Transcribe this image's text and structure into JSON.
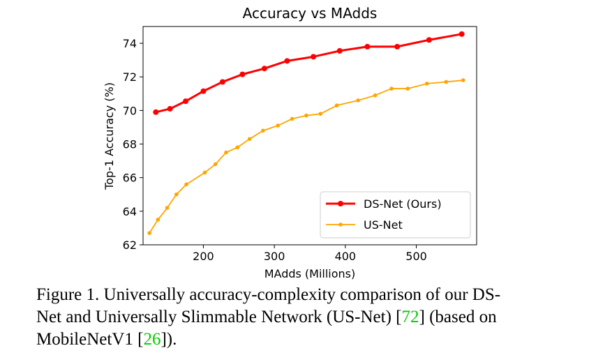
{
  "chart_data": {
    "type": "line",
    "title": "Accuracy vs MAdds",
    "xlabel": "MAdds (Millions)",
    "ylabel": "Top-1 Accuracy (%)",
    "xlim": [
      115,
      585
    ],
    "ylim": [
      62,
      75
    ],
    "xticks": [
      200,
      300,
      400,
      500
    ],
    "yticks": [
      62,
      64,
      66,
      68,
      70,
      72,
      74
    ],
    "grid": false,
    "legend_position": "bottom-right",
    "series": [
      {
        "name": "DS-Net (Ours)",
        "color": "#ff0000",
        "x": [
          133,
          153,
          175,
          200,
          227,
          255,
          286,
          318,
          355,
          392,
          431,
          473,
          518,
          564
        ],
        "y": [
          69.9,
          70.1,
          70.55,
          71.15,
          71.7,
          72.15,
          72.5,
          72.95,
          73.2,
          73.55,
          73.8,
          73.8,
          74.2,
          74.55
        ]
      },
      {
        "name": "US-Net",
        "color": "#ffa500",
        "x": [
          124,
          136,
          149,
          162,
          176,
          202,
          217,
          232,
          248,
          265,
          284,
          305,
          325,
          345,
          365,
          388,
          418,
          442,
          465,
          488,
          515,
          542,
          566
        ],
        "y": [
          62.7,
          63.5,
          64.2,
          65.0,
          65.6,
          66.3,
          66.8,
          67.5,
          67.8,
          68.3,
          68.8,
          69.1,
          69.5,
          69.7,
          69.8,
          70.3,
          70.6,
          70.9,
          71.3,
          71.3,
          71.6,
          71.7,
          71.8
        ]
      }
    ]
  },
  "caption": {
    "line1": "Figure 1. Universally accuracy-complexity comparison of our DS-",
    "line2_pre": "Net and Universally Slimmable Network (US-Net) [",
    "line2_ref": "72",
    "line2_post": "] (based on",
    "line3_pre": "MobileNetV1 [",
    "line3_ref": "26",
    "line3_post": "])."
  }
}
